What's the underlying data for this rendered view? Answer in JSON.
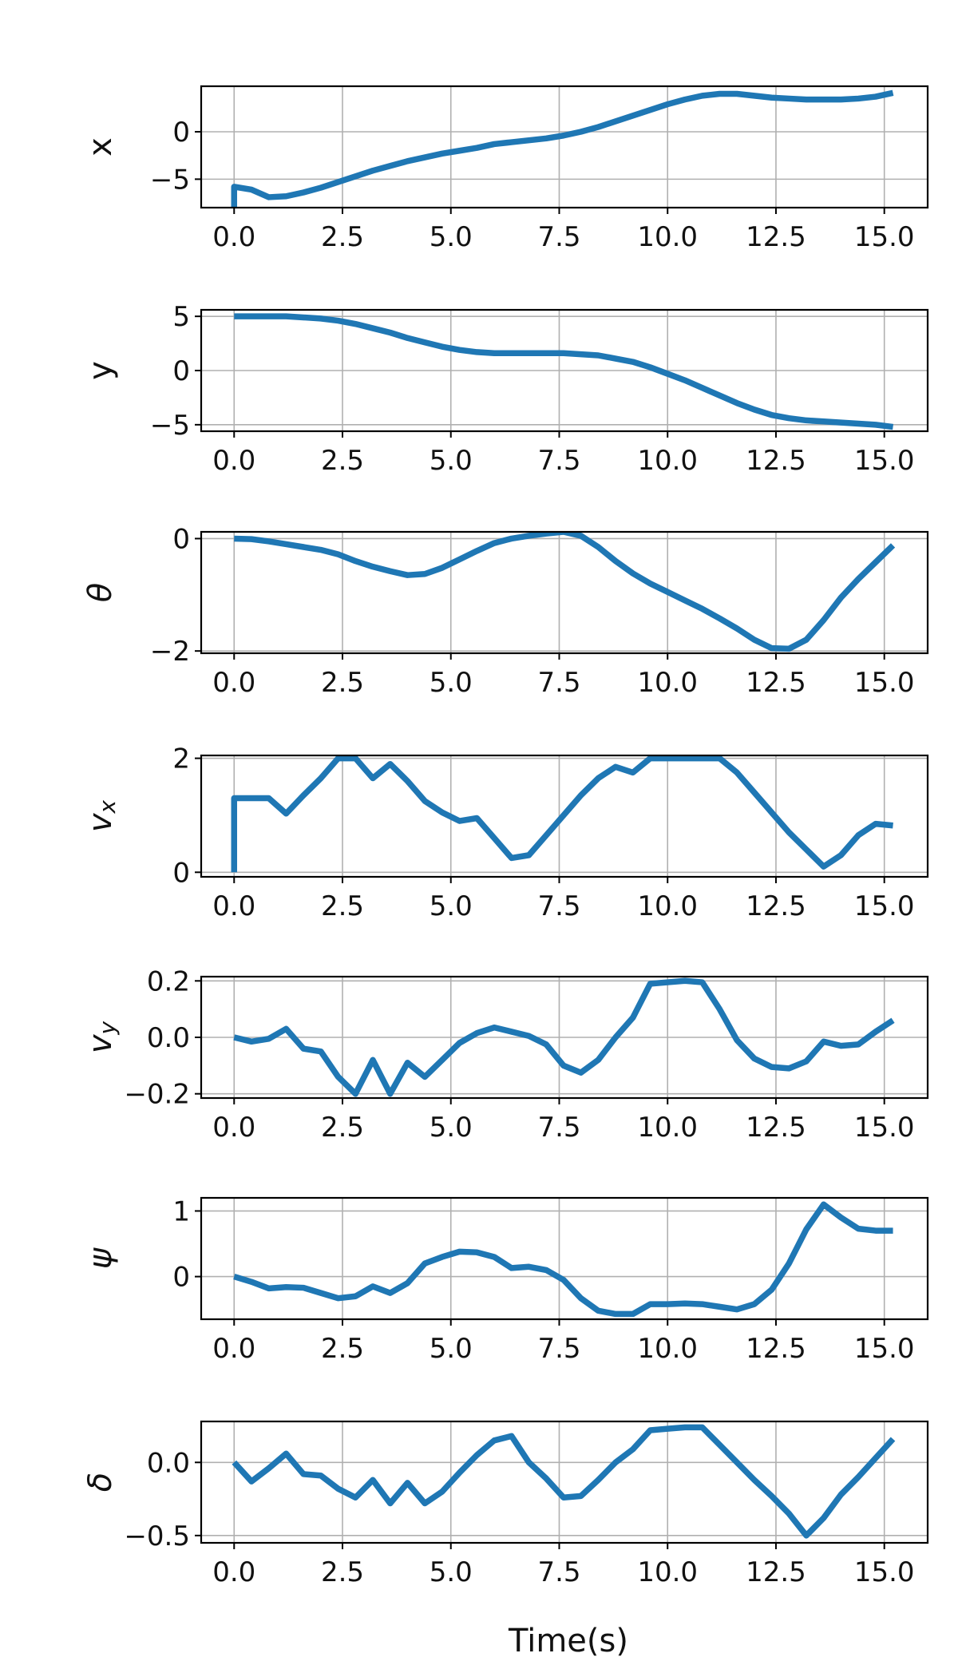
{
  "figure": {
    "xlabel": "Time(s)"
  },
  "chart_data": [
    {
      "type": "line",
      "ylabel": "x",
      "italic": false,
      "xlim": [
        -0.76,
        16.0
      ],
      "ylim": [
        -8.0,
        4.8
      ],
      "xticks": [
        "0.0",
        "2.5",
        "5.0",
        "7.5",
        "10.0",
        "12.5",
        "15.0"
      ],
      "yticks": [
        {
          "value": 0,
          "label": "0"
        },
        {
          "value": -5,
          "label": "−5"
        }
      ],
      "grid": true,
      "color": "#1f77b4",
      "series": [
        {
          "x": [
            0,
            0,
            0.4,
            0.8,
            1.2,
            1.6,
            2.0,
            2.4,
            2.8,
            3.2,
            3.6,
            4.0,
            4.4,
            4.8,
            5.2,
            5.6,
            6.0,
            6.4,
            6.8,
            7.2,
            7.6,
            8.0,
            8.4,
            8.8,
            9.2,
            9.6,
            10.0,
            10.4,
            10.8,
            11.2,
            11.6,
            12.0,
            12.4,
            12.8,
            13.2,
            13.6,
            14.0,
            14.4,
            14.8,
            15.2
          ],
          "y": [
            -8.0,
            -5.8,
            -6.1,
            -6.9,
            -6.8,
            -6.4,
            -5.9,
            -5.3,
            -4.7,
            -4.1,
            -3.6,
            -3.1,
            -2.7,
            -2.3,
            -2.0,
            -1.7,
            -1.3,
            -1.1,
            -0.9,
            -0.7,
            -0.4,
            0.0,
            0.5,
            1.1,
            1.7,
            2.3,
            2.9,
            3.4,
            3.8,
            4.0,
            4.0,
            3.8,
            3.6,
            3.5,
            3.4,
            3.4,
            3.4,
            3.5,
            3.7,
            4.1
          ]
        }
      ]
    },
    {
      "type": "line",
      "ylabel": "y",
      "italic": false,
      "xlim": [
        -0.76,
        16.0
      ],
      "ylim": [
        -5.6,
        5.6
      ],
      "xticks": [
        "0.0",
        "2.5",
        "5.0",
        "7.5",
        "10.0",
        "12.5",
        "15.0"
      ],
      "yticks": [
        {
          "value": 5,
          "label": "5"
        },
        {
          "value": 0,
          "label": "0"
        },
        {
          "value": -5,
          "label": "−5"
        }
      ],
      "grid": true,
      "color": "#1f77b4",
      "series": [
        {
          "x": [
            0,
            0.4,
            0.8,
            1.2,
            1.6,
            2.0,
            2.4,
            2.8,
            3.2,
            3.6,
            4.0,
            4.4,
            4.8,
            5.2,
            5.6,
            6.0,
            6.4,
            6.8,
            7.2,
            7.6,
            8.0,
            8.4,
            8.8,
            9.2,
            9.6,
            10.0,
            10.4,
            10.8,
            11.2,
            11.6,
            12.0,
            12.4,
            12.8,
            13.2,
            13.6,
            14.0,
            14.4,
            14.8,
            15.2
          ],
          "y": [
            5.0,
            5.0,
            5.0,
            5.0,
            4.9,
            4.8,
            4.6,
            4.3,
            3.9,
            3.5,
            3.0,
            2.6,
            2.2,
            1.9,
            1.7,
            1.6,
            1.6,
            1.6,
            1.6,
            1.6,
            1.5,
            1.4,
            1.1,
            0.8,
            0.3,
            -0.3,
            -0.9,
            -1.6,
            -2.3,
            -3.0,
            -3.6,
            -4.1,
            -4.4,
            -4.6,
            -4.7,
            -4.8,
            -4.9,
            -5.0,
            -5.2
          ]
        }
      ]
    },
    {
      "type": "line",
      "ylabel": "θ",
      "italic": true,
      "xlim": [
        -0.76,
        16.0
      ],
      "ylim": [
        -2.04,
        0.12
      ],
      "xticks": [
        "0.0",
        "2.5",
        "5.0",
        "7.5",
        "10.0",
        "12.5",
        "15.0"
      ],
      "yticks": [
        {
          "value": 0,
          "label": "0"
        },
        {
          "value": -2,
          "label": "−2"
        }
      ],
      "grid": true,
      "color": "#1f77b4",
      "series": [
        {
          "x": [
            0,
            0.4,
            0.8,
            1.2,
            1.6,
            2.0,
            2.4,
            2.8,
            3.2,
            3.6,
            4.0,
            4.4,
            4.8,
            5.2,
            5.6,
            6.0,
            6.4,
            6.8,
            7.2,
            7.6,
            8.0,
            8.4,
            8.8,
            9.2,
            9.6,
            10.0,
            10.4,
            10.8,
            11.2,
            11.6,
            12.0,
            12.4,
            12.8,
            13.2,
            13.6,
            14.0,
            14.4,
            14.8,
            15.2
          ],
          "y": [
            0.0,
            -0.01,
            -0.05,
            -0.1,
            -0.15,
            -0.2,
            -0.28,
            -0.4,
            -0.5,
            -0.58,
            -0.65,
            -0.63,
            -0.52,
            -0.37,
            -0.22,
            -0.08,
            0.0,
            0.05,
            0.09,
            0.12,
            0.05,
            -0.15,
            -0.4,
            -0.62,
            -0.8,
            -0.95,
            -1.1,
            -1.25,
            -1.42,
            -1.6,
            -1.8,
            -1.95,
            -1.96,
            -1.8,
            -1.45,
            -1.05,
            -0.72,
            -0.42,
            -0.12
          ]
        }
      ]
    },
    {
      "type": "line",
      "ylabel": "v_x",
      "italic": true,
      "xlim": [
        -0.76,
        16.0
      ],
      "ylim": [
        -0.08,
        2.05
      ],
      "xticks": [
        "0.0",
        "2.5",
        "5.0",
        "7.5",
        "10.0",
        "12.5",
        "15.0"
      ],
      "yticks": [
        {
          "value": 2,
          "label": "2"
        },
        {
          "value": 0,
          "label": "0"
        }
      ],
      "grid": true,
      "color": "#1f77b4",
      "series": [
        {
          "x": [
            0,
            0,
            0.4,
            0.8,
            1.2,
            1.6,
            2.0,
            2.4,
            2.8,
            3.2,
            3.6,
            4.0,
            4.4,
            4.8,
            5.2,
            5.6,
            6.0,
            6.4,
            6.8,
            7.2,
            7.6,
            8.0,
            8.4,
            8.8,
            9.2,
            9.6,
            10.0,
            10.4,
            10.8,
            11.2,
            11.6,
            12.0,
            12.4,
            12.8,
            13.2,
            13.6,
            14.0,
            14.4,
            14.8,
            15.2
          ],
          "y": [
            0.0,
            1.3,
            1.3,
            1.3,
            1.03,
            1.35,
            1.65,
            2.0,
            2.0,
            1.65,
            1.9,
            1.6,
            1.25,
            1.05,
            0.9,
            0.95,
            0.6,
            0.25,
            0.3,
            0.65,
            1.0,
            1.35,
            1.65,
            1.85,
            1.75,
            2.0,
            2.0,
            2.0,
            2.0,
            2.0,
            1.75,
            1.4,
            1.05,
            0.7,
            0.4,
            0.1,
            0.3,
            0.65,
            0.85,
            0.82
          ]
        }
      ]
    },
    {
      "type": "line",
      "ylabel": "v_y",
      "italic": true,
      "xlim": [
        -0.76,
        16.0
      ],
      "ylim": [
        -0.215,
        0.215
      ],
      "xticks": [
        "0.0",
        "2.5",
        "5.0",
        "7.5",
        "10.0",
        "12.5",
        "15.0"
      ],
      "yticks": [
        {
          "value": 0.2,
          "label": "0.2"
        },
        {
          "value": 0.0,
          "label": "0.0"
        },
        {
          "value": -0.2,
          "label": "−0.2"
        }
      ],
      "grid": true,
      "color": "#1f77b4",
      "series": [
        {
          "x": [
            0,
            0.4,
            0.8,
            1.2,
            1.6,
            2.0,
            2.4,
            2.8,
            3.2,
            3.6,
            4.0,
            4.4,
            4.8,
            5.2,
            5.6,
            6.0,
            6.4,
            6.8,
            7.2,
            7.6,
            8.0,
            8.4,
            8.8,
            9.2,
            9.6,
            10.0,
            10.4,
            10.8,
            11.2,
            11.6,
            12.0,
            12.4,
            12.8,
            13.2,
            13.6,
            14.0,
            14.4,
            14.8,
            15.2
          ],
          "y": [
            0.0,
            -0.015,
            -0.005,
            0.03,
            -0.04,
            -0.05,
            -0.14,
            -0.2,
            -0.08,
            -0.2,
            -0.09,
            -0.14,
            -0.08,
            -0.02,
            0.015,
            0.035,
            0.02,
            0.005,
            -0.025,
            -0.1,
            -0.125,
            -0.08,
            0.0,
            0.07,
            0.19,
            0.195,
            0.2,
            0.195,
            0.1,
            -0.01,
            -0.075,
            -0.105,
            -0.11,
            -0.085,
            -0.015,
            -0.03,
            -0.025,
            0.02,
            0.06
          ]
        }
      ]
    },
    {
      "type": "line",
      "ylabel": "ψ",
      "italic": true,
      "xlim": [
        -0.76,
        16.0
      ],
      "ylim": [
        -0.65,
        1.2
      ],
      "xticks": [
        "0.0",
        "2.5",
        "5.0",
        "7.5",
        "10.0",
        "12.5",
        "15.0"
      ],
      "yticks": [
        {
          "value": 1,
          "label": "1"
        },
        {
          "value": 0,
          "label": "0"
        }
      ],
      "grid": true,
      "color": "#1f77b4",
      "series": [
        {
          "x": [
            0,
            0.4,
            0.8,
            1.2,
            1.6,
            2.0,
            2.4,
            2.8,
            3.2,
            3.6,
            4.0,
            4.4,
            4.8,
            5.2,
            5.6,
            6.0,
            6.4,
            6.8,
            7.2,
            7.6,
            8.0,
            8.4,
            8.8,
            9.2,
            9.6,
            10.0,
            10.4,
            10.8,
            11.2,
            11.6,
            12.0,
            12.4,
            12.8,
            13.2,
            13.6,
            14.0,
            14.4,
            14.8,
            15.2
          ],
          "y": [
            0.0,
            -0.08,
            -0.18,
            -0.16,
            -0.17,
            -0.25,
            -0.33,
            -0.3,
            -0.15,
            -0.25,
            -0.1,
            0.2,
            0.3,
            0.38,
            0.37,
            0.3,
            0.13,
            0.15,
            0.1,
            -0.05,
            -0.33,
            -0.52,
            -0.57,
            -0.57,
            -0.42,
            -0.42,
            -0.41,
            -0.42,
            -0.46,
            -0.5,
            -0.42,
            -0.2,
            0.2,
            0.72,
            1.1,
            0.9,
            0.73,
            0.7,
            0.7
          ]
        }
      ]
    },
    {
      "type": "line",
      "ylabel": "δ",
      "italic": true,
      "xlim": [
        -0.76,
        16.0
      ],
      "ylim": [
        -0.55,
        0.28
      ],
      "xticks": [
        "0.0",
        "2.5",
        "5.0",
        "7.5",
        "10.0",
        "12.5",
        "15.0"
      ],
      "yticks": [
        {
          "value": 0.0,
          "label": "0.0"
        },
        {
          "value": -0.5,
          "label": "−0.5"
        }
      ],
      "grid": true,
      "color": "#1f77b4",
      "series": [
        {
          "x": [
            0,
            0.4,
            0.8,
            1.2,
            1.6,
            2.0,
            2.4,
            2.8,
            3.2,
            3.6,
            4.0,
            4.4,
            4.8,
            5.2,
            5.6,
            6.0,
            6.4,
            6.8,
            7.2,
            7.6,
            8.0,
            8.4,
            8.8,
            9.2,
            9.6,
            10.0,
            10.4,
            10.8,
            11.2,
            11.6,
            12.0,
            12.4,
            12.8,
            13.2,
            13.6,
            14.0,
            14.4,
            14.8,
            15.2
          ],
          "y": [
            0.0,
            -0.13,
            -0.04,
            0.06,
            -0.08,
            -0.09,
            -0.18,
            -0.24,
            -0.12,
            -0.28,
            -0.14,
            -0.28,
            -0.2,
            -0.07,
            0.05,
            0.15,
            0.18,
            0.0,
            -0.11,
            -0.24,
            -0.23,
            -0.12,
            0.0,
            0.09,
            0.22,
            0.23,
            0.24,
            0.24,
            0.12,
            0.0,
            -0.12,
            -0.23,
            -0.35,
            -0.5,
            -0.38,
            -0.22,
            -0.1,
            0.03,
            0.16
          ]
        }
      ]
    }
  ]
}
